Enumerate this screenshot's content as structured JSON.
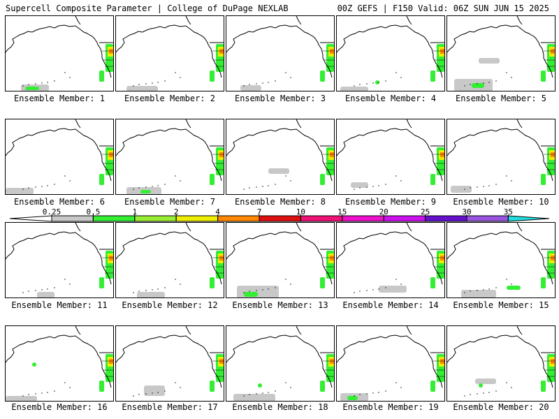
{
  "header": {
    "title": "Supercell Composite Parameter | College of DuPage NEXLAB",
    "valid": "00Z GEFS | F150 Valid: 06Z SUN JUN 15 2025"
  },
  "members": [
    {
      "label": "Ensemble Member: 1"
    },
    {
      "label": "Ensemble Member: 2"
    },
    {
      "label": "Ensemble Member: 3"
    },
    {
      "label": "Ensemble Member: 4"
    },
    {
      "label": "Ensemble Member: 5"
    },
    {
      "label": "Ensemble Member: 6"
    },
    {
      "label": "Ensemble Member: 7"
    },
    {
      "label": "Ensemble Member: 8"
    },
    {
      "label": "Ensemble Member: 9"
    },
    {
      "label": "Ensemble Member: 10"
    },
    {
      "label": "Ensemble Member: 11"
    },
    {
      "label": "Ensemble Member: 12"
    },
    {
      "label": "Ensemble Member: 13"
    },
    {
      "label": "Ensemble Member: 14"
    },
    {
      "label": "Ensemble Member: 15"
    },
    {
      "label": "Ensemble Member: 16"
    },
    {
      "label": "Ensemble Member: 17"
    },
    {
      "label": "Ensemble Member: 18"
    },
    {
      "label": "Ensemble Member: 19"
    },
    {
      "label": "Ensemble Member: 20"
    }
  ],
  "colorbar": {
    "ticks": [
      "0.25",
      "0.5",
      "1",
      "2",
      "4",
      "7",
      "10",
      "15",
      "20",
      "25",
      "30",
      "35"
    ],
    "colors": [
      "#c8c8c8",
      "#33ee33",
      "#99ee33",
      "#eeee00",
      "#ff8800",
      "#dd1111",
      "#ee1177",
      "#ee11cc",
      "#cc11ee",
      "#6611cc",
      "#9955dd",
      "#22dddd"
    ]
  }
}
